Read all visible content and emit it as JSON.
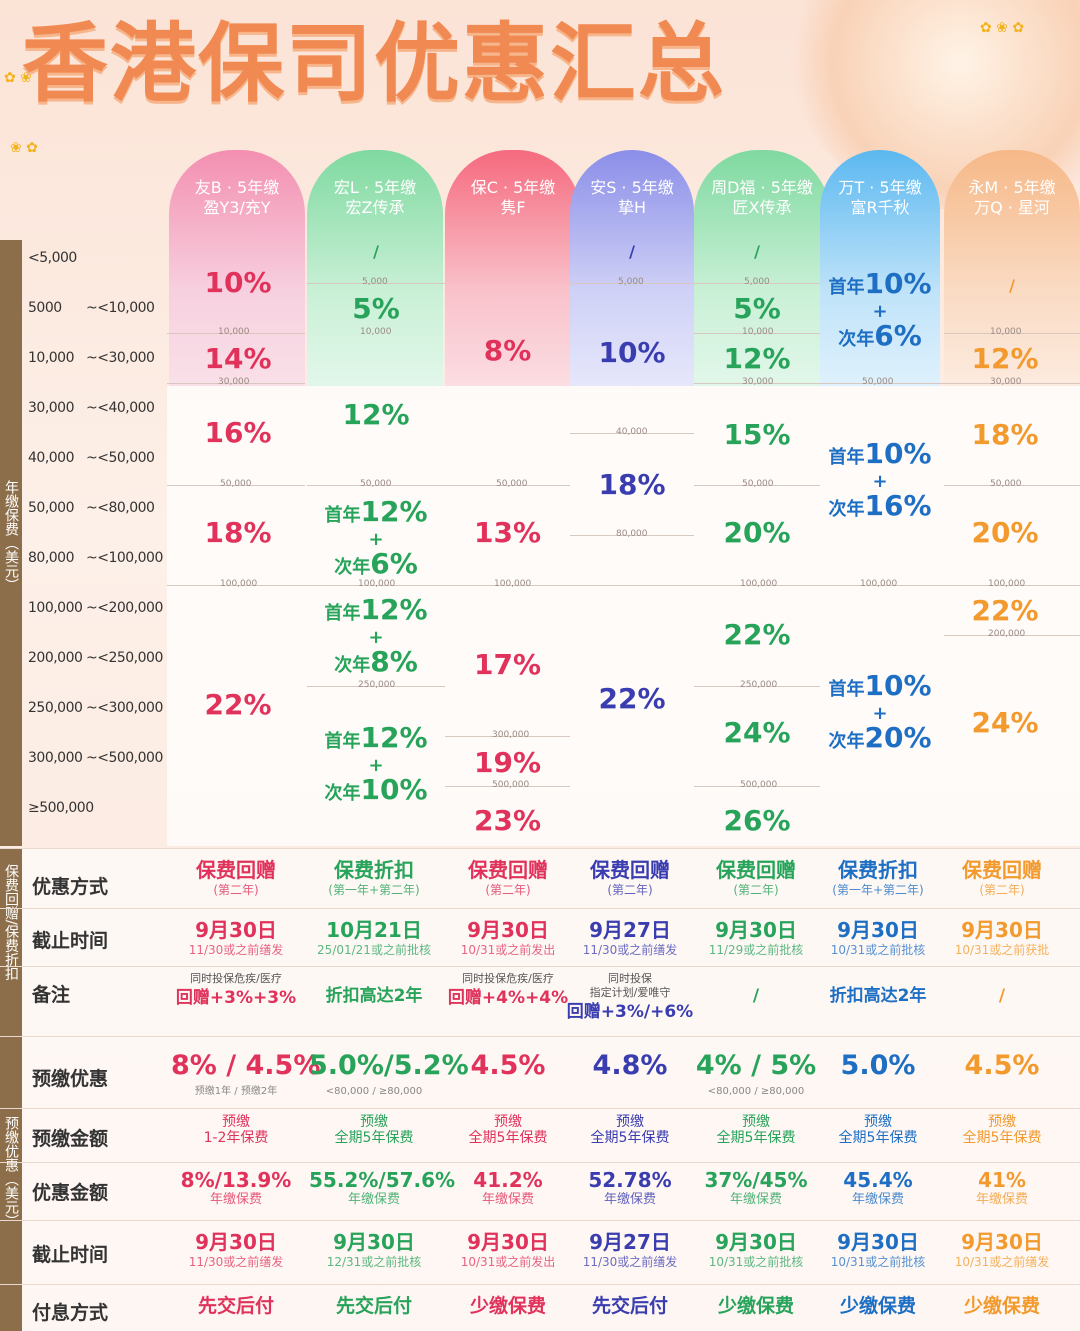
{
  "title": "香港保司优惠汇总",
  "companies": [
    {
      "line1": "友B · 5年缴",
      "line2": "盈Y3/充Y"
    },
    {
      "line1": "宏L · 5年缴",
      "line2": "宏Z传承"
    },
    {
      "line1": "保C · 5年缴",
      "line2": "隽F"
    },
    {
      "line1": "安S · 5年缴",
      "line2": "挚H"
    },
    {
      "line1": "周D福 · 5年缴",
      "line2": "匠X传承"
    },
    {
      "line1": "万T · 5年缴",
      "line2": "富R千秋"
    },
    {
      "line1": "永M · 5年缴",
      "line2": "万Q · 星河"
    }
  ],
  "premium_axis_label": "年缴保费（美元）",
  "premium_rows": [
    {
      "lo": "<5,000",
      "hi": ""
    },
    {
      "lo": "5000",
      "hi": "~<10,000"
    },
    {
      "lo": "10,000",
      "hi": "~<30,000"
    },
    {
      "lo": "30,000",
      "hi": "~<40,000"
    },
    {
      "lo": "40,000",
      "hi": "~<50,000"
    },
    {
      "lo": "50,000",
      "hi": "~<80,000"
    },
    {
      "lo": "80,000",
      "hi": "~<100,000"
    },
    {
      "lo": "100,000",
      "hi": "~<200,000"
    },
    {
      "lo": "200,000",
      "hi": "~<250,000"
    },
    {
      "lo": "250,000",
      "hi": "~<300,000"
    },
    {
      "lo": "300,000",
      "hi": "~<500,000"
    },
    {
      "lo": "≥500,000",
      "hi": ""
    }
  ],
  "rates": {
    "c1": [
      "10%",
      "14%",
      "16%",
      "18%",
      "22%"
    ],
    "c2": {
      "na": "/",
      "r1": "5%",
      "r2": "12%",
      "first": "首年",
      "plus": "+",
      "second": "次年",
      "f1": "12%",
      "s1": "6%",
      "f2": "12%",
      "s2": "8%",
      "f3": "12%",
      "s3": "10%"
    },
    "c3": [
      "8%",
      "13%",
      "17%",
      "19%",
      "23%"
    ],
    "c4": {
      "na": "/",
      "r1": "10%",
      "r2": "18%",
      "r3": "22%"
    },
    "c5": {
      "na": "/",
      "r": [
        "5%",
        "12%",
        "15%",
        "20%",
        "22%",
        "24%",
        "26%"
      ]
    },
    "c6": {
      "first": "首年",
      "plus": "+",
      "second": "次年",
      "f1": "10%",
      "s1": "6%",
      "f2": "10%",
      "s2": "16%",
      "f3": "10%",
      "s3": "20%"
    },
    "c7": {
      "na": "/",
      "r": [
        "12%",
        "18%",
        "20%",
        "22%",
        "24%"
      ]
    }
  },
  "ticks": {
    "t5000": "5,000",
    "t10000": "10,000",
    "t30000": "30,000",
    "t40000": "40,000",
    "t50000": "50,000",
    "t80000": "80,000",
    "t100000": "100,000",
    "t200000": "200,000",
    "t250000": "250,000",
    "t300000": "300,000",
    "t500000": "500,000"
  },
  "sec1_label": "保费回赠/保费折扣",
  "sec2_label": "预缴优惠（美元）",
  "rows": {
    "method": {
      "label": "优惠方式",
      "values": [
        {
          "main": "保费回赠",
          "sub": "(第二年)"
        },
        {
          "main": "保费折扣",
          "sub": "(第一年+第二年)"
        },
        {
          "main": "保费回赠",
          "sub": "(第二年)"
        },
        {
          "main": "保费回赠",
          "sub": "(第二年)"
        },
        {
          "main": "保费回赠",
          "sub": "(第二年)"
        },
        {
          "main": "保费折扣",
          "sub": "(第一年+第二年)"
        },
        {
          "main": "保费回赠",
          "sub": "(第二年)"
        }
      ]
    },
    "deadline": {
      "label": "截止时间",
      "values": [
        {
          "main": "9月30日",
          "sub": "11/30或之前缮发"
        },
        {
          "main": "10月21日",
          "sub": "25/01/21或之前批核"
        },
        {
          "main": "9月30日",
          "sub": "10/31或之前发出"
        },
        {
          "main": "9月27日",
          "sub": "11/30或之前缮发"
        },
        {
          "main": "9月30日",
          "sub": "11/29或之前批核"
        },
        {
          "main": "9月30日",
          "sub": "10/31或之前批核"
        },
        {
          "main": "9月30日",
          "sub": "10/31或之前获批"
        }
      ]
    },
    "remark": {
      "label": "备注",
      "values": [
        {
          "top": "同时投保危疾/医疗",
          "mid": "",
          "main": "回赠+3%+3%"
        },
        {
          "top": "",
          "mid": "",
          "main": "折扣高达2年"
        },
        {
          "top": "同时投保危疾/医疗",
          "mid": "",
          "main": "回赠+4%+4%"
        },
        {
          "top": "同时投保",
          "mid": "指定计划/爱唯守",
          "main": "回赠+3%/+6%"
        },
        {
          "top": "",
          "mid": "",
          "main": "/"
        },
        {
          "top": "",
          "mid": "",
          "main": "折扣高达2年"
        },
        {
          "top": "",
          "mid": "",
          "main": "/"
        }
      ]
    },
    "prepay": {
      "label": "预缴优惠",
      "values": [
        {
          "main": "8% / 4.5%",
          "sub": "预缴1年  /  预缴2年"
        },
        {
          "main": "5.0%/5.2%",
          "sub": "<80,000  /  ≥80,000"
        },
        {
          "main": "4.5%",
          "sub": ""
        },
        {
          "main": "4.8%",
          "sub": ""
        },
        {
          "main": "4% / 5%",
          "sub": "<80,000  /  ≥80,000"
        },
        {
          "main": "5.0%",
          "sub": ""
        },
        {
          "main": "4.5%",
          "sub": ""
        }
      ]
    },
    "prepay_amount": {
      "label": "预缴金额",
      "values": [
        {
          "main": "预缴",
          "sub": "1-2年保费"
        },
        {
          "main": "预缴",
          "sub": "全期5年保费"
        },
        {
          "main": "预缴",
          "sub": "全期5年保费"
        },
        {
          "main": "预缴",
          "sub": "全期5年保费"
        },
        {
          "main": "预缴",
          "sub": "全期5年保费"
        },
        {
          "main": "预缴",
          "sub": "全期5年保费"
        },
        {
          "main": "预缴",
          "sub": "全期5年保费"
        }
      ]
    },
    "benefit_amount": {
      "label": "优惠金额",
      "values": [
        {
          "main": "8%/13.9%",
          "sub": "年缴保费"
        },
        {
          "main": "55.2%/57.6%",
          "sub": "年缴保费"
        },
        {
          "main": "41.2%",
          "sub": "年缴保费"
        },
        {
          "main": "52.78%",
          "sub": "年缴保费"
        },
        {
          "main": "37%/45%",
          "sub": "年缴保费"
        },
        {
          "main": "45.4%",
          "sub": "年缴保费"
        },
        {
          "main": "41%",
          "sub": "年缴保费"
        }
      ]
    },
    "deadline2": {
      "label": "截止时间",
      "values": [
        {
          "main": "9月30日",
          "sub": "11/30或之前缮发"
        },
        {
          "main": "9月30日",
          "sub": "12/31或之前批核"
        },
        {
          "main": "9月30日",
          "sub": "10/31或之前发出"
        },
        {
          "main": "9月27日",
          "sub": "11/30或之前缮发"
        },
        {
          "main": "9月30日",
          "sub": "10/31或之前批核"
        },
        {
          "main": "9月30日",
          "sub": "10/31或之前批核"
        },
        {
          "main": "9月30日",
          "sub": "10/31或之前缮发"
        }
      ]
    },
    "interest": {
      "label": "付息方式",
      "values": [
        {
          "main": "先交后付"
        },
        {
          "main": "先交后付"
        },
        {
          "main": "少缴保费"
        },
        {
          "main": "先交后付"
        },
        {
          "main": "少缴保费"
        },
        {
          "main": "少缴保费"
        },
        {
          "main": "少缴保费"
        }
      ]
    }
  },
  "colors": {
    "c1": "#e0325b",
    "c2": "#27a35a",
    "c3": "#e0325b",
    "c4": "#3a3db0",
    "c5": "#27a35a",
    "c6": "#1e6fc4",
    "c7": "#f29a2e"
  }
}
